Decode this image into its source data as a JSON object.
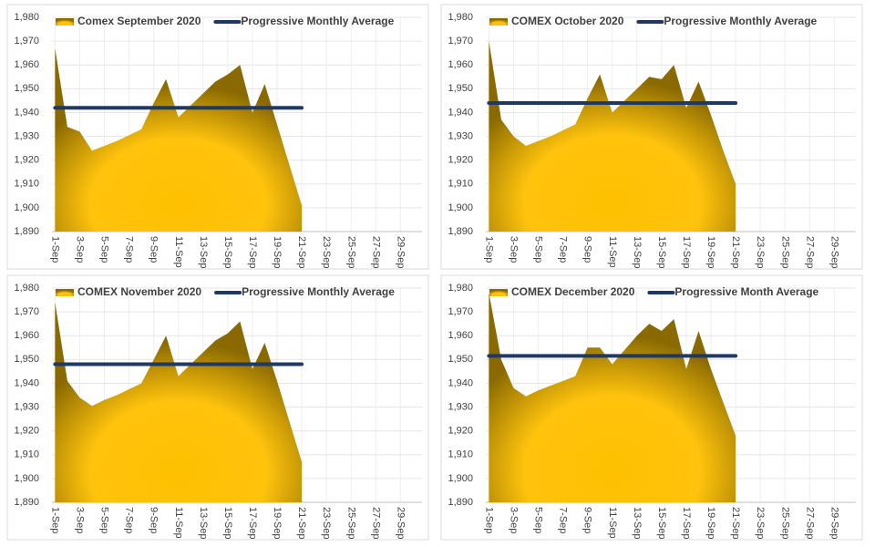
{
  "chart_data": [
    {
      "type": "area",
      "categories": [
        "1-Sep",
        null,
        "3-Sep",
        null,
        "5-Sep",
        null,
        "7-Sep",
        null,
        "9-Sep",
        null,
        "11-Sep",
        null,
        "13-Sep",
        null,
        "15-Sep",
        null,
        "17-Sep",
        null,
        "19-Sep",
        null,
        "21-Sep",
        null,
        "23-Sep",
        null,
        "25-Sep",
        null,
        "27-Sep",
        null,
        "29-Sep",
        null
      ],
      "series": [
        {
          "name": "Comex September 2020",
          "kind": "area",
          "color": "#ffc000",
          "values": [
            1967,
            1934,
            1932,
            1924,
            1926,
            1928,
            1930.5,
            1933,
            1944,
            1954,
            1938,
            1943,
            1948,
            1953,
            1956,
            1960,
            1940,
            1952,
            1935,
            1918,
            1901,
            null,
            null,
            null,
            null,
            null,
            null,
            null,
            null,
            null
          ]
        },
        {
          "name": "Progressive Monthly Average",
          "kind": "line",
          "color": "#1f3864",
          "values": [
            1942,
            1942,
            1942,
            1942,
            1942,
            1942,
            1942,
            1942,
            1942,
            1942,
            1942,
            1942,
            1942,
            1942,
            1942,
            1942,
            1942,
            1942,
            1942,
            1942,
            1942,
            null,
            null,
            null,
            null,
            null,
            null,
            null,
            null,
            null
          ]
        }
      ],
      "ylim": [
        1890,
        1980
      ],
      "yticks": [
        {
          "value": 1890,
          "label": "1,890"
        },
        {
          "value": 1900,
          "label": "1,900"
        },
        {
          "value": 1910,
          "label": "1,910"
        },
        {
          "value": 1920,
          "label": "1,920"
        },
        {
          "value": 1930,
          "label": "1,930"
        },
        {
          "value": 1940,
          "label": "1,940"
        },
        {
          "value": 1950,
          "label": "1,950"
        },
        {
          "value": 1960,
          "label": "1,960"
        },
        {
          "value": 1970,
          "label": "1,970"
        },
        {
          "value": 1980,
          "label": "1,980"
        }
      ],
      "grid": true,
      "legend": "top"
    },
    {
      "type": "area",
      "categories": [
        "1-Sep",
        null,
        "3-Sep",
        null,
        "5-Sep",
        null,
        "7-Sep",
        null,
        "9-Sep",
        null,
        "11-Sep",
        null,
        "13-Sep",
        null,
        "15-Sep",
        null,
        "17-Sep",
        null,
        "19-Sep",
        null,
        "21-Sep",
        null,
        "23-Sep",
        null,
        "25-Sep",
        null,
        "27-Sep",
        null,
        "29-Sep",
        null
      ],
      "series": [
        {
          "name": "COMEX October 2020",
          "kind": "area",
          "color": "#ffc000",
          "values": [
            1970,
            1937,
            1930,
            1926,
            1928,
            1930,
            1932.5,
            1935,
            1946,
            1956,
            1940,
            1945,
            1950,
            1955,
            1954,
            1960,
            1942,
            1953,
            1939,
            1924,
            1910,
            null,
            null,
            null,
            null,
            null,
            null,
            null,
            null,
            null
          ]
        },
        {
          "name": "Progressive Monthly Average",
          "kind": "line",
          "color": "#1f3864",
          "values": [
            1944,
            1944,
            1944,
            1944,
            1944,
            1944,
            1944,
            1944,
            1944,
            1944,
            1944,
            1944,
            1944,
            1944,
            1944,
            1944,
            1944,
            1944,
            1944,
            1944,
            1944,
            null,
            null,
            null,
            null,
            null,
            null,
            null,
            null,
            null
          ]
        }
      ],
      "ylim": [
        1890,
        1980
      ],
      "yticks": [
        {
          "value": 1890,
          "label": "1,890"
        },
        {
          "value": 1900,
          "label": "1,900"
        },
        {
          "value": 1910,
          "label": "1,910"
        },
        {
          "value": 1920,
          "label": "1,920"
        },
        {
          "value": 1930,
          "label": "1,930"
        },
        {
          "value": 1940,
          "label": "1,940"
        },
        {
          "value": 1950,
          "label": "1,950"
        },
        {
          "value": 1960,
          "label": "1,960"
        },
        {
          "value": 1970,
          "label": "1,970"
        },
        {
          "value": 1980,
          "label": "1,980"
        }
      ],
      "grid": true,
      "legend": "top"
    },
    {
      "type": "area",
      "categories": [
        "1-Sep",
        null,
        "3-Sep",
        null,
        "5-Sep",
        null,
        "7-Sep",
        null,
        "9-Sep",
        null,
        "11-Sep",
        null,
        "13-Sep",
        null,
        "15-Sep",
        null,
        "17-Sep",
        null,
        "19-Sep",
        null,
        "21-Sep",
        null,
        "23-Sep",
        null,
        "25-Sep",
        null,
        "27-Sep",
        null,
        "29-Sep",
        null
      ],
      "series": [
        {
          "name": "COMEX November 2020",
          "kind": "area",
          "color": "#ffc000",
          "values": [
            1974,
            1941,
            1934,
            1930.5,
            1933,
            1935,
            1937.5,
            1940,
            1950,
            1960,
            1943,
            1948,
            1953,
            1958,
            1961,
            1966,
            1946,
            1957,
            1941,
            1924,
            1907,
            null,
            null,
            null,
            null,
            null,
            null,
            null,
            null,
            null
          ]
        },
        {
          "name": "Progressive Monthly Average",
          "kind": "line",
          "color": "#1f3864",
          "values": [
            1948,
            1948,
            1948,
            1948,
            1948,
            1948,
            1948,
            1948,
            1948,
            1948,
            1948,
            1948,
            1948,
            1948,
            1948,
            1948,
            1948,
            1948,
            1948,
            1948,
            1948,
            null,
            null,
            null,
            null,
            null,
            null,
            null,
            null,
            null
          ]
        }
      ],
      "ylim": [
        1890,
        1980
      ],
      "yticks": [
        {
          "value": 1890,
          "label": "1,890"
        },
        {
          "value": 1900,
          "label": "1,900"
        },
        {
          "value": 1910,
          "label": "1,910"
        },
        {
          "value": 1920,
          "label": "1,920"
        },
        {
          "value": 1930,
          "label": "1,930"
        },
        {
          "value": 1940,
          "label": "1,940"
        },
        {
          "value": 1950,
          "label": "1,950"
        },
        {
          "value": 1960,
          "label": "1,960"
        },
        {
          "value": 1970,
          "label": "1,970"
        },
        {
          "value": 1980,
          "label": "1,980"
        }
      ],
      "grid": true,
      "legend": "top"
    },
    {
      "type": "area",
      "categories": [
        "1-Sep",
        null,
        "3-Sep",
        null,
        "5-Sep",
        null,
        "7-Sep",
        null,
        "9-Sep",
        null,
        "11-Sep",
        null,
        "13-Sep",
        null,
        "15-Sep",
        null,
        "17-Sep",
        null,
        "19-Sep",
        null,
        "21-Sep",
        null,
        "23-Sep",
        null,
        "25-Sep",
        null,
        "27-Sep",
        null,
        "29-Sep",
        null
      ],
      "series": [
        {
          "name": "COMEX December 2020",
          "kind": "area",
          "color": "#ffc000",
          "values": [
            1978,
            1950,
            1938,
            1934.5,
            1937,
            1939,
            1941,
            1943,
            1955,
            1955,
            1948,
            1954,
            1960,
            1965,
            1962,
            1967,
            1946,
            1962,
            1946,
            1932,
            1918,
            null,
            null,
            null,
            null,
            null,
            null,
            null,
            null,
            null
          ]
        },
        {
          "name": "Progressive Month Average",
          "kind": "line",
          "color": "#1f3864",
          "values": [
            1951.5,
            1951.5,
            1951.5,
            1951.5,
            1951.5,
            1951.5,
            1951.5,
            1951.5,
            1951.5,
            1951.5,
            1951.5,
            1951.5,
            1951.5,
            1951.5,
            1951.5,
            1951.5,
            1951.5,
            1951.5,
            1951.5,
            1951.5,
            1951.5,
            null,
            null,
            null,
            null,
            null,
            null,
            null,
            null,
            null
          ]
        }
      ],
      "ylim": [
        1890,
        1980
      ],
      "yticks": [
        {
          "value": 1890,
          "label": "1,890"
        },
        {
          "value": 1900,
          "label": "1,900"
        },
        {
          "value": 1910,
          "label": "1,910"
        },
        {
          "value": 1920,
          "label": "1,920"
        },
        {
          "value": 1930,
          "label": "1,930"
        },
        {
          "value": 1940,
          "label": "1,940"
        },
        {
          "value": 1950,
          "label": "1,950"
        },
        {
          "value": 1960,
          "label": "1,960"
        },
        {
          "value": 1970,
          "label": "1,970"
        },
        {
          "value": 1980,
          "label": "1,980"
        }
      ],
      "grid": true,
      "legend": "top"
    }
  ]
}
